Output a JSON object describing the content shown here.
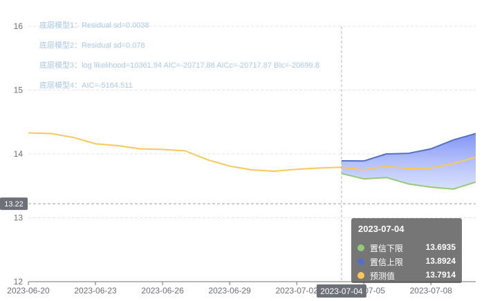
{
  "chart_data": {
    "type": "line",
    "x": [
      "2023-06-20",
      "2023-06-21",
      "2023-06-22",
      "2023-06-23",
      "2023-06-24",
      "2023-06-25",
      "2023-06-26",
      "2023-06-27",
      "2023-06-28",
      "2023-06-29",
      "2023-06-30",
      "2023-07-01",
      "2023-07-02",
      "2023-07-03",
      "2023-07-04",
      "2023-07-05",
      "2023-07-06",
      "2023-07-07",
      "2023-07-08",
      "2023-07-09",
      "2023-07-10"
    ],
    "x_tick_labels": [
      "2023-06-20",
      "2023-06-23",
      "2023-06-26",
      "2023-06-29",
      "2023-07-02",
      "2023-07-05",
      "2023-07-08"
    ],
    "ylim": [
      12,
      16
    ],
    "y_ticks": [
      12,
      13,
      14,
      15,
      16
    ],
    "series": [
      {
        "name": "预测值",
        "color": "#fac858",
        "values": [
          14.33,
          14.32,
          14.26,
          14.16,
          14.13,
          14.08,
          14.07,
          14.05,
          13.91,
          13.81,
          13.75,
          13.73,
          13.76,
          13.78,
          13.7914,
          13.75,
          13.81,
          13.77,
          13.78,
          13.85,
          13.95
        ]
      },
      {
        "name": "置信下限",
        "color": "#91cc75",
        "values": [
          null,
          null,
          null,
          null,
          null,
          null,
          null,
          null,
          null,
          null,
          null,
          null,
          null,
          null,
          13.6935,
          13.61,
          13.63,
          13.53,
          13.48,
          13.45,
          13.56
        ]
      },
      {
        "name": "置信上限",
        "color": "#5470c6",
        "values": [
          null,
          null,
          null,
          null,
          null,
          null,
          null,
          null,
          null,
          null,
          null,
          null,
          null,
          null,
          13.8924,
          13.89,
          14.0,
          14.01,
          14.08,
          14.22,
          14.32
        ]
      }
    ],
    "grid": true,
    "crosshair": {
      "x_label": "2023-07-04",
      "y_label": "13.22"
    },
    "annotations": [
      "底层模型1：Residual sd=0.0038",
      "底层模型2：Residual sd=0.078",
      "底层模型3：log likelihood=10361.94 AIC=-20717.88 AICc=-20717.87 BIc=-20699.8",
      "底层模型4：AIC=-5164.511"
    ],
    "tooltip": {
      "title": "2023-07-04",
      "rows": [
        {
          "name": "置信下限",
          "value": "13.6935",
          "color": "#91cc75"
        },
        {
          "name": "置信上限",
          "value": "13.8924",
          "color": "#5470c6"
        },
        {
          "name": "预测值",
          "value": "13.7914",
          "color": "#fac858"
        }
      ]
    }
  }
}
